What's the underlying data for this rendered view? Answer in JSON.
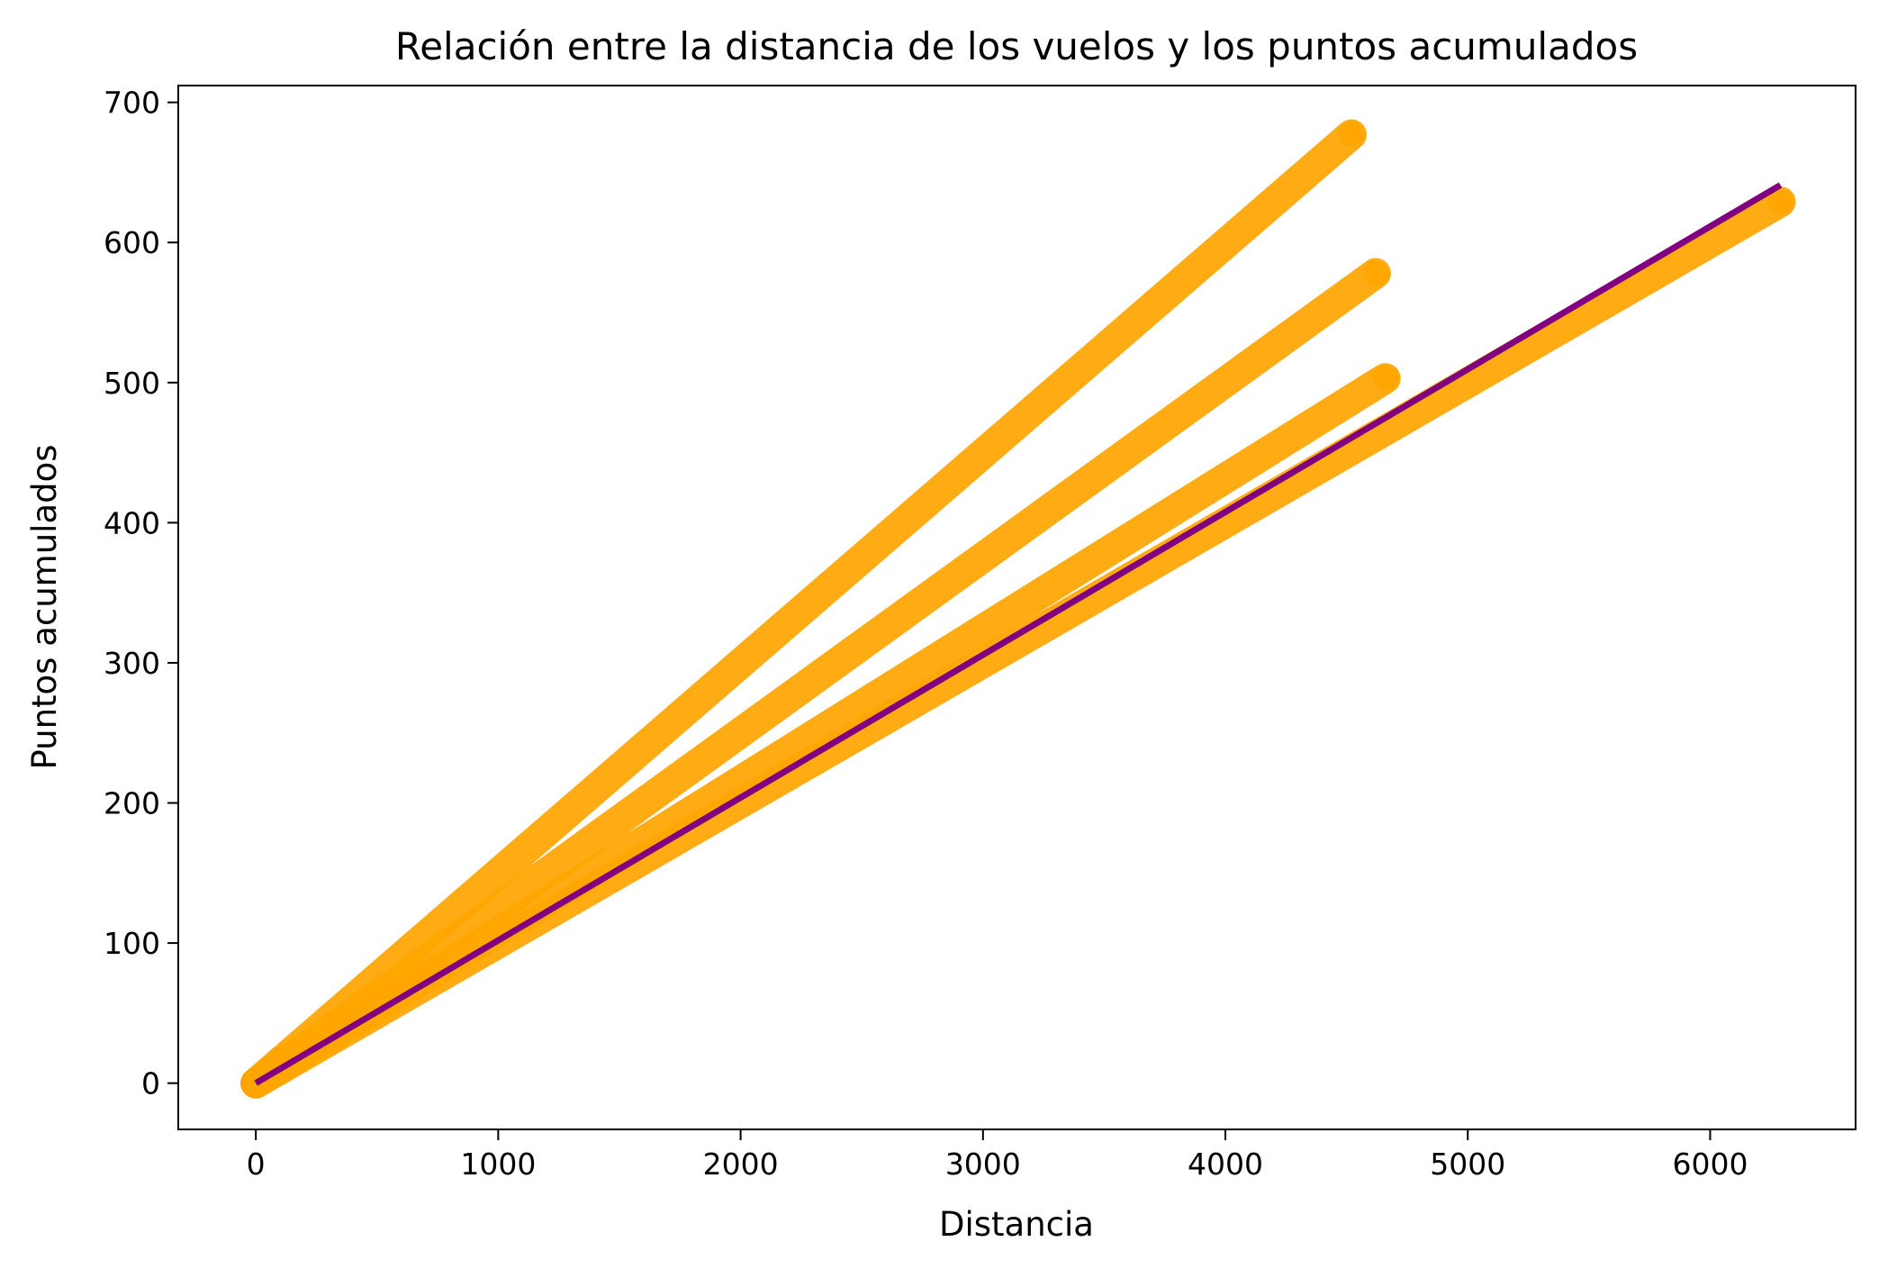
{
  "chart_data": {
    "type": "scatter",
    "title": "Relación entre la distancia de los vuelos y los puntos acumulados",
    "xlabel": "Distancia",
    "ylabel": "Puntos acumulados",
    "xlim": [
      -320,
      6600
    ],
    "ylim": [
      -33,
      712
    ],
    "x_ticks": [
      0,
      1000,
      2000,
      3000,
      4000,
      5000,
      6000
    ],
    "y_ticks": [
      0,
      100,
      200,
      300,
      400,
      500,
      600,
      700
    ],
    "grid": false,
    "legend": "none",
    "colors": {
      "points": "#FFA500",
      "trend": "#800080"
    },
    "series": [
      {
        "values": [
          [
            0,
            0
          ],
          [
            100,
            15
          ],
          [
            4520,
            677
          ]
        ]
      },
      {
        "values": [
          [
            0,
            0
          ],
          [
            100,
            12.5
          ],
          [
            4620,
            578
          ]
        ]
      },
      {
        "values": [
          [
            0,
            0
          ],
          [
            100,
            10.8
          ],
          [
            4660,
            503
          ]
        ]
      },
      {
        "values": [
          [
            0,
            0
          ],
          [
            100,
            10
          ],
          [
            6290,
            629
          ]
        ]
      }
    ],
    "trend_line": {
      "values": [
        [
          0,
          0
        ],
        [
          6290,
          641
        ]
      ]
    }
  }
}
